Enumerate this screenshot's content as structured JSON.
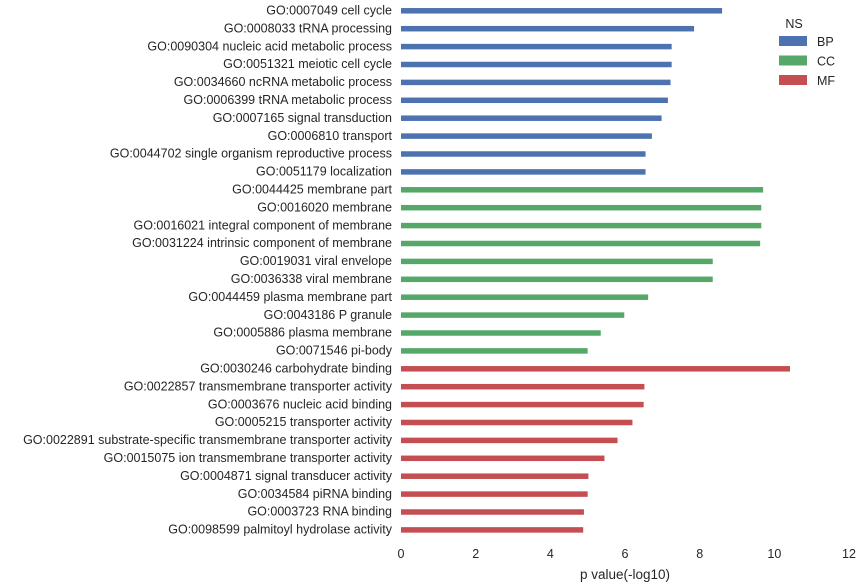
{
  "chart_data": {
    "type": "bar",
    "orientation": "horizontal",
    "xlabel": "p value(-log10)",
    "ylabel": "",
    "xlim": [
      0,
      12
    ],
    "xticks": [
      0,
      2,
      4,
      6,
      8,
      10,
      12
    ],
    "grid": false,
    "legend": {
      "title": "NS",
      "placement": "top-right",
      "entries": [
        {
          "name": "BP",
          "color": "#4c72b0"
        },
        {
          "name": "CC",
          "color": "#55a868"
        },
        {
          "name": "MF",
          "color": "#c44e52"
        }
      ]
    },
    "bars": [
      {
        "label": "GO:0007049 cell cycle",
        "value": 8.6,
        "ns": "BP"
      },
      {
        "label": "GO:0008033 tRNA processing",
        "value": 7.85,
        "ns": "BP"
      },
      {
        "label": "GO:0090304 nucleic acid metabolic process",
        "value": 7.25,
        "ns": "BP"
      },
      {
        "label": "GO:0051321 meiotic cell cycle",
        "value": 7.25,
        "ns": "BP"
      },
      {
        "label": "GO:0034660 ncRNA metabolic process",
        "value": 7.22,
        "ns": "BP"
      },
      {
        "label": "GO:0006399 tRNA metabolic process",
        "value": 7.15,
        "ns": "BP"
      },
      {
        "label": "GO:0007165 signal transduction",
        "value": 6.98,
        "ns": "BP"
      },
      {
        "label": "GO:0006810 transport",
        "value": 6.72,
        "ns": "BP"
      },
      {
        "label": "GO:0044702 single organism reproductive process",
        "value": 6.55,
        "ns": "BP"
      },
      {
        "label": "GO:0051179 localization",
        "value": 6.55,
        "ns": "BP"
      },
      {
        "label": "GO:0044425 membrane part",
        "value": 9.7,
        "ns": "CC"
      },
      {
        "label": "GO:0016020 membrane",
        "value": 9.65,
        "ns": "CC"
      },
      {
        "label": "GO:0016021 integral component of membrane",
        "value": 9.65,
        "ns": "CC"
      },
      {
        "label": "GO:0031224 intrinsic component of membrane",
        "value": 9.62,
        "ns": "CC"
      },
      {
        "label": "GO:0019031 viral envelope",
        "value": 8.35,
        "ns": "CC"
      },
      {
        "label": "GO:0036338 viral membrane",
        "value": 8.35,
        "ns": "CC"
      },
      {
        "label": "GO:0044459 plasma membrane part",
        "value": 6.62,
        "ns": "CC"
      },
      {
        "label": "GO:0043186 P granule",
        "value": 5.98,
        "ns": "CC"
      },
      {
        "label": "GO:0005886 plasma membrane",
        "value": 5.35,
        "ns": "CC"
      },
      {
        "label": "GO:0071546 pi-body",
        "value": 5.0,
        "ns": "CC"
      },
      {
        "label": "GO:0030246 carbohydrate binding",
        "value": 10.42,
        "ns": "MF"
      },
      {
        "label": "GO:0022857 transmembrane transporter activity",
        "value": 6.52,
        "ns": "MF"
      },
      {
        "label": "GO:0003676 nucleic acid binding",
        "value": 6.5,
        "ns": "MF"
      },
      {
        "label": "GO:0005215 transporter activity",
        "value": 6.2,
        "ns": "MF"
      },
      {
        "label": "GO:0022891 substrate-specific transmembrane transporter activity",
        "value": 5.8,
        "ns": "MF"
      },
      {
        "label": "GO:0015075 ion transmembrane transporter activity",
        "value": 5.45,
        "ns": "MF"
      },
      {
        "label": "GO:0004871 signal transducer activity",
        "value": 5.02,
        "ns": "MF"
      },
      {
        "label": "GO:0034584 piRNA binding",
        "value": 5.0,
        "ns": "MF"
      },
      {
        "label": "GO:0003723 RNA binding",
        "value": 4.9,
        "ns": "MF"
      },
      {
        "label": "GO:0098599 palmitoyl hydrolase activity",
        "value": 4.88,
        "ns": "MF"
      }
    ]
  }
}
